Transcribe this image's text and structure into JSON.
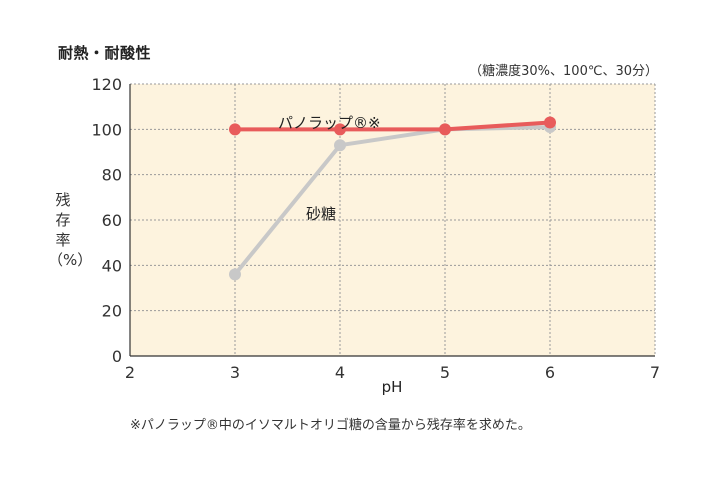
{
  "title": "耐熱・耐酸性",
  "condition": "（糖濃度30%、100℃、30分）",
  "ylabel_lines": [
    "残",
    "存",
    "率",
    "（%）"
  ],
  "footnote": "※パノラップ®中のイソマルトオリゴ糖の含量から残存率を求めた。",
  "colors": {
    "plot_bg": "#fdf3de",
    "grid": "#999999",
    "panorap": "#e85b5b",
    "sugar": "#c8c8c8",
    "axis": "#333333"
  },
  "chart_data": {
    "type": "line",
    "title": "耐熱・耐酸性",
    "xlabel": "pH",
    "ylabel": "残存率（%）",
    "xlim": [
      2,
      7
    ],
    "ylim": [
      0,
      120
    ],
    "xticks": [
      2,
      3,
      4,
      5,
      6,
      7
    ],
    "yticks": [
      0,
      20,
      40,
      60,
      80,
      100,
      120
    ],
    "grid": true,
    "series": [
      {
        "name": "パノラップ®※",
        "color": "#e85b5b",
        "x": [
          3,
          4,
          5,
          6
        ],
        "y": [
          100,
          100,
          100,
          103
        ]
      },
      {
        "name": "砂糖",
        "color": "#c8c8c8",
        "x": [
          3,
          4,
          5,
          6
        ],
        "y": [
          36,
          93,
          100,
          101
        ]
      }
    ]
  }
}
